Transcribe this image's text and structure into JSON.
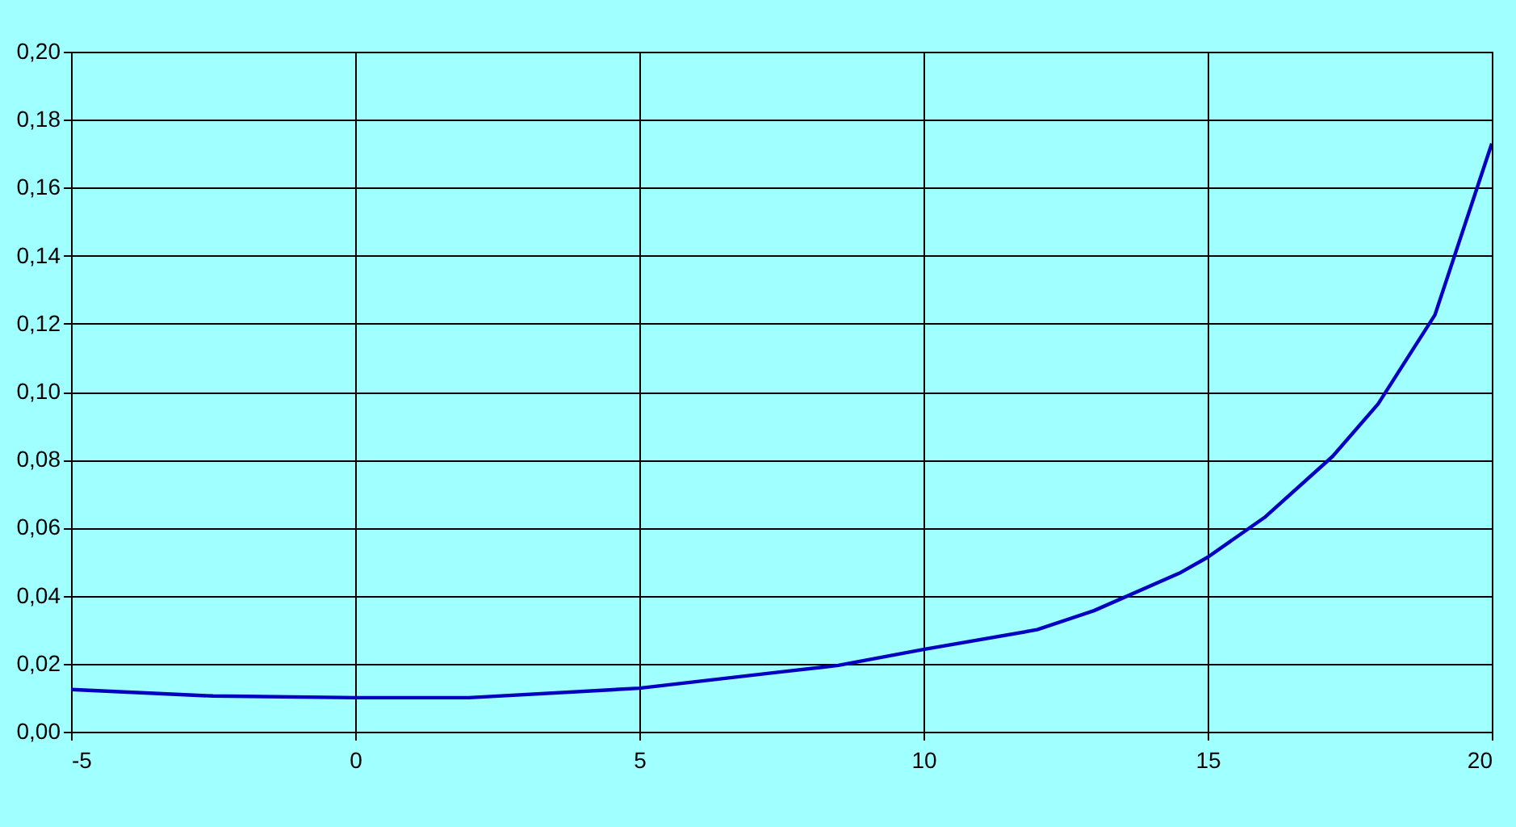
{
  "chart_data": {
    "type": "line",
    "x": [
      -5,
      -2.5,
      0,
      2,
      5,
      7.5,
      8.5,
      10,
      12,
      13,
      14.5,
      15,
      16,
      17.2,
      18,
      19,
      20
    ],
    "series": [
      {
        "color": "#0000c0",
        "values": [
          0.0124,
          0.0105,
          0.01,
          0.01,
          0.0128,
          0.0176,
          0.0195,
          0.0242,
          0.03,
          0.0356,
          0.0466,
          0.0513,
          0.063,
          0.081,
          0.0964,
          0.1226,
          0.173
        ]
      }
    ],
    "xlim": [
      -5,
      20
    ],
    "xticks": [
      -5,
      0,
      5,
      10,
      15,
      20
    ],
    "ylim": [
      0,
      0.2
    ],
    "yticks": [
      {
        "value": 0,
        "label": "0,00"
      },
      {
        "value": 0.02,
        "label": "0,02"
      },
      {
        "value": 0.04,
        "label": "0,04"
      },
      {
        "value": 0.06,
        "label": "0,06"
      },
      {
        "value": 0.08,
        "label": "0,08"
      },
      {
        "value": 0.1,
        "label": "0,10"
      },
      {
        "value": 0.12,
        "label": "0,12"
      },
      {
        "value": 0.14,
        "label": "0,14"
      },
      {
        "value": 0.16,
        "label": "0,16"
      },
      {
        "value": 0.18,
        "label": "0,18"
      },
      {
        "value": 0.2,
        "label": "0,20"
      }
    ],
    "grid": true,
    "line_style": "solid",
    "marker": "none"
  }
}
